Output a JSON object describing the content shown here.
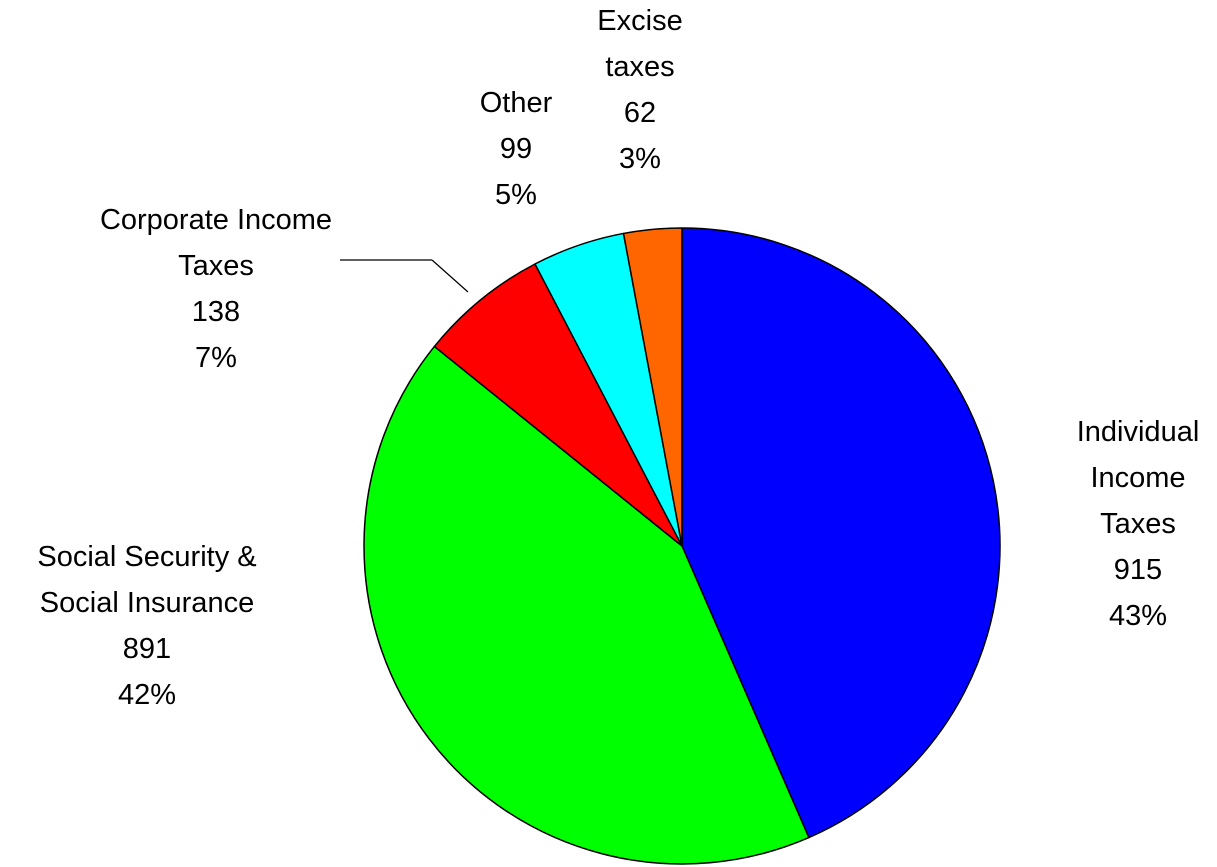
{
  "chart_data": {
    "type": "pie",
    "start_angle_deg": 0,
    "direction": "clockwise",
    "slices": [
      {
        "label": [
          "Individual",
          "Income",
          "Taxes"
        ],
        "value": 915,
        "percent": "43%",
        "color": "#0000ff"
      },
      {
        "label": [
          "Social Security &",
          "Social Insurance"
        ],
        "value": 891,
        "percent": "42%",
        "color": "#00ff00"
      },
      {
        "label": [
          "Corporate Income",
          "Taxes"
        ],
        "value": 138,
        "percent": "7%",
        "color": "#ff0000"
      },
      {
        "label": [
          "Other"
        ],
        "value": 99,
        "percent": "5%",
        "color": "#00ffff"
      },
      {
        "label": [
          "Excise",
          "taxes"
        ],
        "value": 62,
        "percent": "3%",
        "color": "#ff6600"
      }
    ]
  }
}
